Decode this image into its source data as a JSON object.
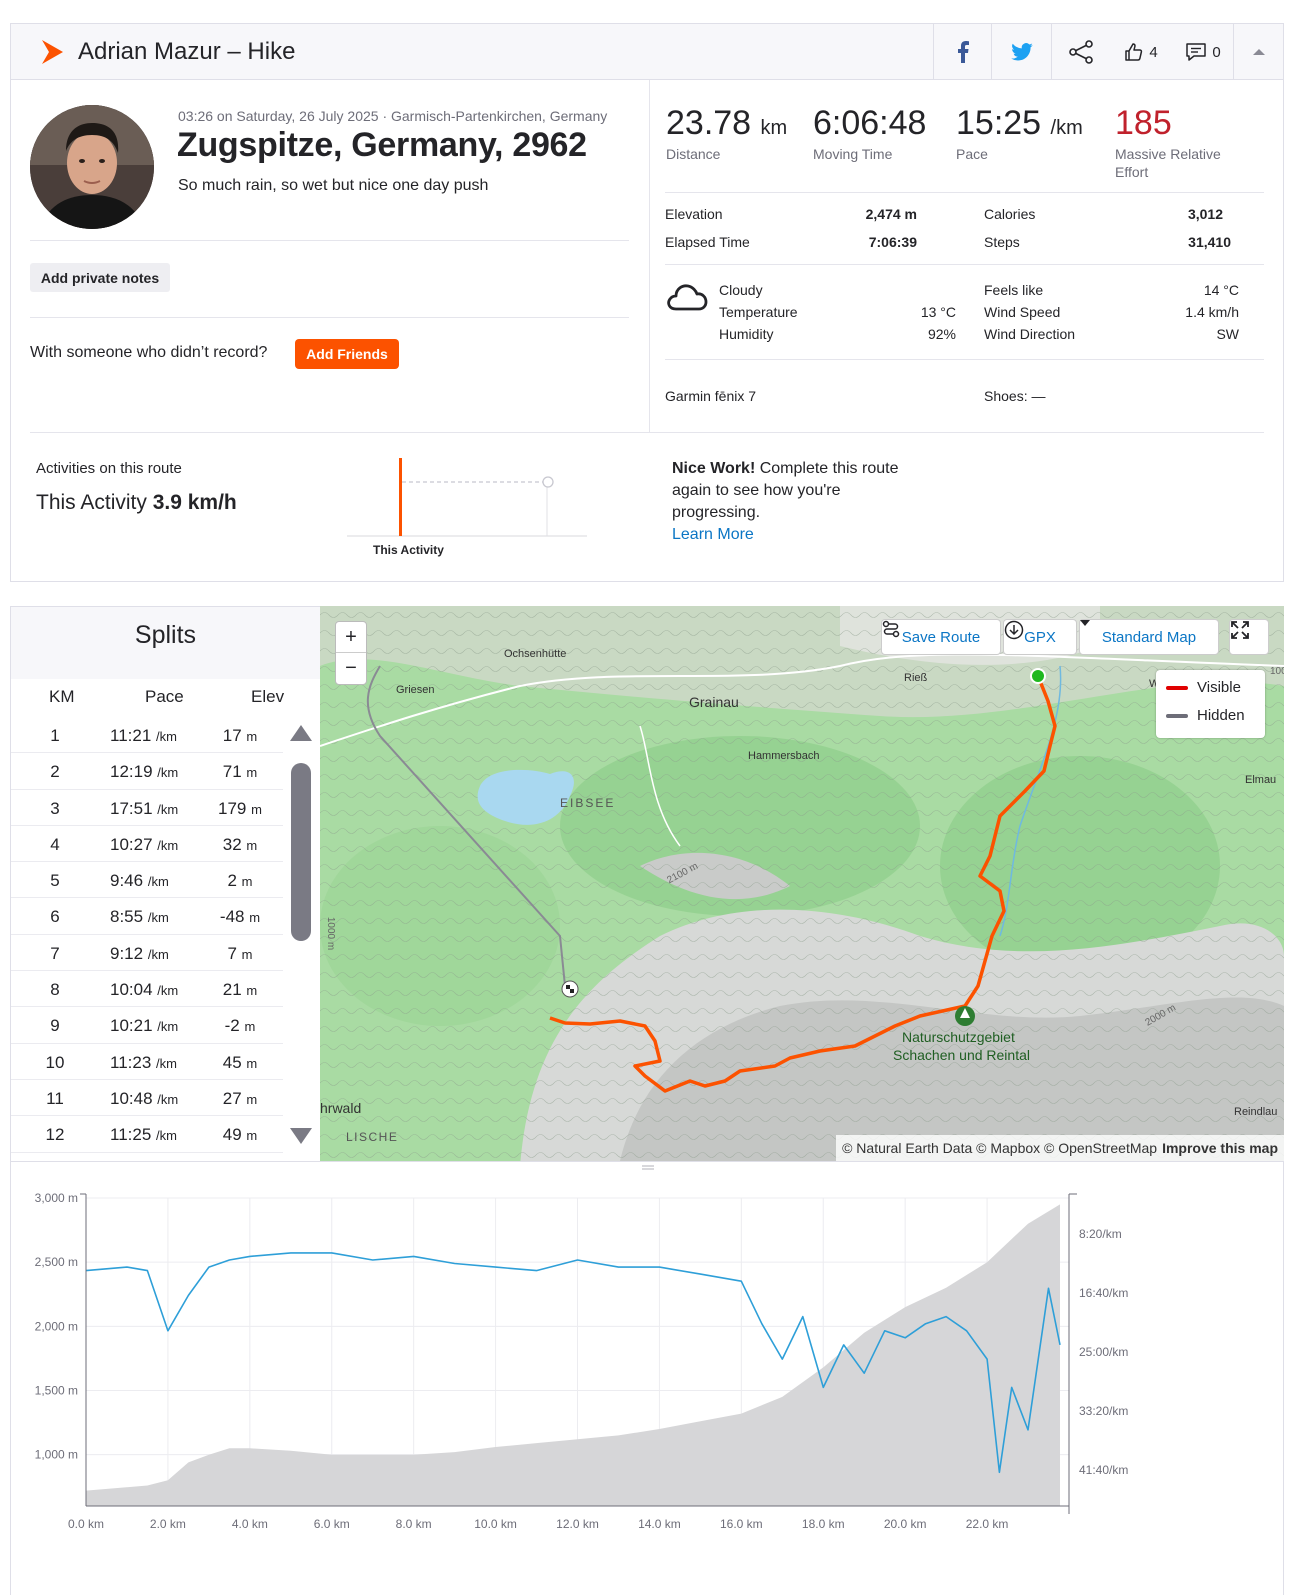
{
  "header": {
    "title": "Adrian Mazur – Hike",
    "kudos_count": "4",
    "comments_count": "0"
  },
  "activity": {
    "date_location": "03:26 on Saturday, 26 July 2025 · Garmisch-Partenkirchen, Germany",
    "name": "Zugspitze, Germany, 2962",
    "description": "So much rain, so wet but nice one day push",
    "private_notes_label": "Add private notes",
    "with_someone_text": "With someone who didn’t record?",
    "add_friends_label": "Add Friends"
  },
  "stats": {
    "distance": {
      "value": "23.78",
      "unit": "km",
      "label": "Distance"
    },
    "moving_time": {
      "value": "6:06:48",
      "label": "Moving Time"
    },
    "pace": {
      "value": "15:25",
      "unit": "/km",
      "label": "Pace"
    },
    "effort": {
      "value": "185",
      "label1": "Massive Relative",
      "label2": "Effort"
    },
    "elevation": {
      "label": "Elevation",
      "value": "2,474 m"
    },
    "elapsed": {
      "label": "Elapsed Time",
      "value": "7:06:39"
    },
    "calories": {
      "label": "Calories",
      "value": "3,012"
    },
    "steps": {
      "label": "Steps",
      "value": "31,410"
    }
  },
  "weather": {
    "condition": "Cloudy",
    "temperature": {
      "label": "Temperature",
      "value": "13 °C"
    },
    "humidity": {
      "label": "Humidity",
      "value": "92%"
    },
    "feels_like": {
      "label": "Feels like",
      "value": "14 °C"
    },
    "wind_speed": {
      "label": "Wind Speed",
      "value": "1.4 km/h"
    },
    "wind_direction": {
      "label": "Wind Direction",
      "value": "SW"
    }
  },
  "gear": {
    "device": "Garmin fēnix 7",
    "shoes": "Shoes: —"
  },
  "route": {
    "label": "Activities on this route",
    "this_activity_prefix": "This Activity",
    "this_activity_speed": "3.9 km/h",
    "chart_label": "This Activity",
    "nice_work_bold": "Nice Work!",
    "nice_work_text": " Complete this route again to see how you're progressing.",
    "learn_more": "Learn More"
  },
  "splits": {
    "title": "Splits",
    "headers": {
      "km": "KM",
      "pace": "Pace",
      "elev": "Elev"
    },
    "pace_unit": "/km",
    "elev_unit": "m",
    "rows": [
      {
        "km": "1",
        "pace": "11:21",
        "elev": "17"
      },
      {
        "km": "2",
        "pace": "12:19",
        "elev": "71"
      },
      {
        "km": "3",
        "pace": "17:51",
        "elev": "179"
      },
      {
        "km": "4",
        "pace": "10:27",
        "elev": "32"
      },
      {
        "km": "5",
        "pace": "9:46",
        "elev": "2"
      },
      {
        "km": "6",
        "pace": "8:55",
        "elev": "-48"
      },
      {
        "km": "7",
        "pace": "9:12",
        "elev": "7"
      },
      {
        "km": "8",
        "pace": "10:04",
        "elev": "21"
      },
      {
        "km": "9",
        "pace": "10:21",
        "elev": "-2"
      },
      {
        "km": "10",
        "pace": "11:23",
        "elev": "45"
      },
      {
        "km": "11",
        "pace": "10:48",
        "elev": "27"
      },
      {
        "km": "12",
        "pace": "11:25",
        "elev": "49"
      }
    ]
  },
  "map": {
    "save_route": "Save Route",
    "gpx": "GPX",
    "map_type": "Standard Map",
    "legend_visible": "Visible",
    "legend_hidden": "Hidden",
    "attribution": "© Natural Earth Data © Mapbox © OpenStreetMap",
    "improve": "Improve this map",
    "labels": {
      "ochsenhutte": "Ochsenhütte",
      "griesen": "Griesen",
      "grainau": "Grainau",
      "riess": "Rieß",
      "hammersbach": "Hammersbach",
      "eibsee": "EIBSEE",
      "elmau": "Elmau",
      "wa": "Wa",
      "reserve1": "Naturschutzgebiet",
      "reserve2": "Schachen und Reintal",
      "hrwald": "hrwald",
      "lische": "LISCHE",
      "reindlau": "Reindlau",
      "c2100": "2100 m",
      "c2000": "2000 m",
      "c1000": "1000 m",
      "c100": "100"
    },
    "colors": {
      "route": "#fc5200",
      "hidden": "#6d6d78",
      "start": "#1fb81f"
    }
  },
  "chart_data": {
    "type": "area",
    "x_unit": "km",
    "xlim": [
      0,
      24
    ],
    "x_ticks": [
      "0.0 km",
      "2.0 km",
      "4.0 km",
      "6.0 km",
      "8.0 km",
      "10.0 km",
      "12.0 km",
      "14.0 km",
      "16.0 km",
      "18.0 km",
      "20.0 km",
      "22.0 km"
    ],
    "y_left_ticks": [
      "3,000 m",
      "2,500 m",
      "2,000 m",
      "1,500 m",
      "1,000 m"
    ],
    "y_right_ticks": [
      "8:20/km",
      "16:40/km",
      "25:00/km",
      "33:20/km",
      "41:40/km"
    ],
    "ylim_left": [
      600,
      3000
    ],
    "series": [
      {
        "type": "area",
        "color": "#d6d6d8",
        "x": [
          0,
          1.5,
          2.0,
          2.5,
          3.0,
          3.5,
          4.0,
          5.0,
          6.0,
          7.0,
          8.0,
          9.0,
          10.0,
          11.0,
          12.0,
          13.0,
          14.0,
          15.0,
          16.0,
          17.0,
          18.0,
          19.0,
          20.0,
          21.0,
          22.0,
          23.0,
          23.78
        ],
        "values": [
          720,
          760,
          800,
          940,
          1000,
          1050,
          1050,
          1030,
          1000,
          1000,
          1000,
          1020,
          1060,
          1090,
          1120,
          1150,
          1200,
          1260,
          1320,
          1450,
          1680,
          1950,
          2150,
          2300,
          2500,
          2800,
          2950
        ]
      },
      {
        "type": "line",
        "color": "#2e9fd8",
        "x": [
          0,
          1,
          1.5,
          2,
          2.5,
          3,
          3.5,
          4,
          5,
          6,
          7,
          8,
          9,
          10,
          11,
          12,
          13,
          14,
          15,
          16,
          16.5,
          17,
          17.5,
          18,
          18.5,
          19,
          19.5,
          20,
          20.5,
          21,
          21.5,
          22,
          22.3,
          22.6,
          23,
          23.5,
          23.78
        ],
        "values": [
          13.5,
          13.0,
          13.5,
          22.0,
          17.0,
          13.0,
          12.0,
          11.5,
          11.0,
          11.0,
          12.0,
          11.5,
          12.5,
          13.0,
          13.5,
          12.0,
          13.0,
          13.0,
          14.0,
          15.0,
          21.0,
          26.0,
          20.0,
          30.0,
          24.0,
          28.0,
          22.0,
          23.0,
          21.0,
          20.0,
          22.0,
          26.0,
          42.0,
          30.0,
          36.0,
          16.0,
          24.0
        ]
      }
    ]
  }
}
